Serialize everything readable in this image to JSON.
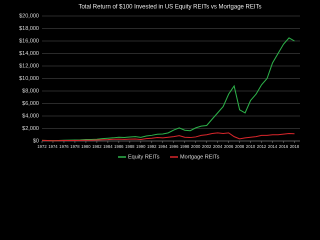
{
  "chart_data": {
    "type": "line",
    "title": "Total Return of $100 Invested in US Equity REITs vs Mortgage REITs",
    "x": [
      1972,
      1973,
      1974,
      1975,
      1976,
      1977,
      1978,
      1979,
      1980,
      1981,
      1982,
      1983,
      1984,
      1985,
      1986,
      1987,
      1988,
      1989,
      1990,
      1991,
      1992,
      1993,
      1994,
      1995,
      1996,
      1997,
      1998,
      1999,
      2000,
      2001,
      2002,
      2003,
      2004,
      2005,
      2006,
      2007,
      2008,
      2009,
      2010,
      2011,
      2012,
      2013,
      2014,
      2015,
      2016,
      2017,
      2018
    ],
    "series": [
      {
        "name": "Equity REITs",
        "color": "#2db34a",
        "values": [
          100,
          85,
          62,
          82,
          110,
          135,
          150,
          180,
          230,
          250,
          290,
          380,
          450,
          510,
          600,
          570,
          650,
          700,
          590,
          800,
          910,
          1080,
          1120,
          1300,
          1750,
          2100,
          1720,
          1650,
          2100,
          2380,
          2480,
          3500,
          4500,
          5500,
          7500,
          8800,
          5000,
          4500,
          6500,
          7500,
          9000,
          10000,
          12500,
          14000,
          15500,
          16500,
          16000
        ]
      },
      {
        "name": "Mortgage REITs",
        "color": "#d9262b",
        "values": [
          100,
          80,
          45,
          60,
          70,
          80,
          90,
          100,
          110,
          120,
          150,
          200,
          220,
          270,
          300,
          260,
          300,
          320,
          250,
          380,
          450,
          550,
          500,
          600,
          700,
          850,
          600,
          550,
          650,
          900,
          1000,
          1200,
          1300,
          1200,
          1300,
          700,
          350,
          500,
          600,
          700,
          900,
          900,
          1000,
          1000,
          1100,
          1200,
          1150
        ]
      }
    ],
    "xlim": [
      1972,
      2019
    ],
    "xticks": [
      1972,
      1974,
      1976,
      1978,
      1980,
      1982,
      1984,
      1986,
      1988,
      1990,
      1992,
      1994,
      1996,
      1998,
      2000,
      2002,
      2004,
      2006,
      2008,
      2010,
      2012,
      2014,
      2016,
      2018
    ],
    "ylim": [
      0,
      20000
    ],
    "yticks": [
      {
        "value": 0,
        "label": "$0"
      },
      {
        "value": 2000,
        "label": "$2,000"
      },
      {
        "value": 4000,
        "label": "$4,000"
      },
      {
        "value": 6000,
        "label": "$6,000"
      },
      {
        "value": 8000,
        "label": "$8,000"
      },
      {
        "value": 10000,
        "label": "$10,000"
      },
      {
        "value": 12000,
        "label": "$12,000"
      },
      {
        "value": 14000,
        "label": "$14,000"
      },
      {
        "value": 16000,
        "label": "$16,000"
      },
      {
        "value": 18000,
        "label": "$18,000"
      },
      {
        "value": 20000,
        "label": "$20,000"
      }
    ],
    "grid": true,
    "legend": "bottom"
  }
}
